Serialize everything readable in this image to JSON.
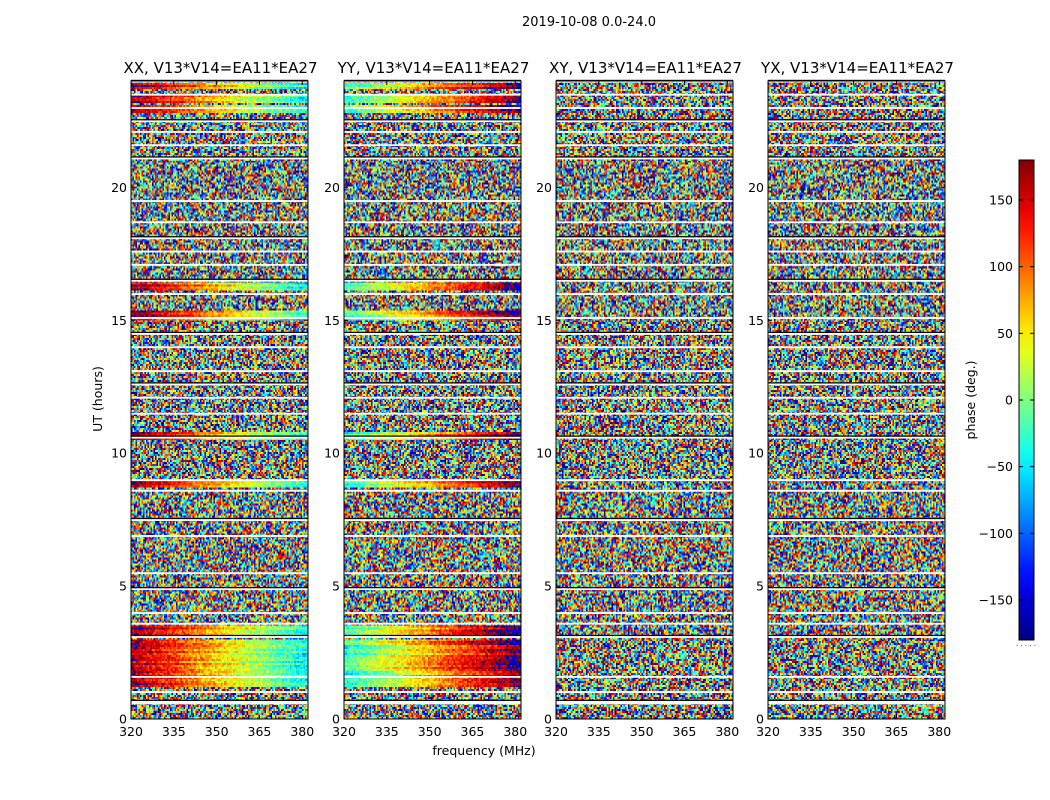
{
  "figure": {
    "title": "2019-10-08 0.0-24.0",
    "xlabel": "frequency (MHz)",
    "ylabel": "UT (hours)",
    "colorbar_label": "phase (deg.)",
    "colorbar_footer": "· · · · ·"
  },
  "chart_data": {
    "type": "heatmap",
    "title": "2019-10-08 0.0-24.0",
    "xlabel": "frequency (MHz)",
    "ylabel": "UT (hours)",
    "xlim": [
      320,
      382
    ],
    "ylim": [
      0,
      24
    ],
    "x_ticks": [
      320,
      335,
      350,
      365,
      380
    ],
    "y_ticks": [
      0,
      5,
      10,
      15,
      20
    ],
    "colorbar": {
      "label": "phase (deg.)",
      "range": [
        -180,
        180
      ],
      "ticks": [
        150,
        100,
        50,
        0,
        -50,
        -100,
        -150
      ],
      "tick_labels": [
        "150",
        "100",
        "50",
        "0",
        "−50",
        "−100",
        "−150"
      ],
      "colormap": "jet"
    },
    "panels": [
      {
        "name": "XX",
        "title": "XX, V13*V14=EA11*EA27"
      },
      {
        "name": "YY",
        "title": "YY, V13*V14=EA11*EA27"
      },
      {
        "name": "XY",
        "title": "XY, V13*V14=EA11*EA27"
      },
      {
        "name": "YX",
        "title": "YX, V13*V14=EA11*EA27"
      }
    ],
    "flagged_intervals_hours": [
      [
        0.55,
        0.68
      ],
      [
        0.98,
        1.05
      ],
      [
        1.55,
        1.62
      ],
      [
        3.05,
        3.12
      ],
      [
        3.55,
        3.62
      ],
      [
        3.95,
        4.02
      ],
      [
        4.85,
        4.92
      ],
      [
        5.45,
        5.52
      ],
      [
        6.85,
        6.92
      ],
      [
        7.45,
        7.52
      ],
      [
        8.55,
        8.62
      ],
      [
        8.95,
        9.02
      ],
      [
        10.55,
        10.62
      ],
      [
        11.45,
        11.52
      ],
      [
        12.05,
        12.12
      ],
      [
        12.55,
        12.62
      ],
      [
        13.05,
        13.12
      ],
      [
        13.95,
        14.02
      ],
      [
        14.45,
        14.52
      ],
      [
        15.05,
        15.12
      ],
      [
        15.95,
        16.02
      ],
      [
        16.45,
        16.52
      ],
      [
        17.05,
        17.12
      ],
      [
        17.55,
        17.62
      ],
      [
        18.05,
        18.12
      ],
      [
        18.65,
        18.72
      ],
      [
        19.45,
        19.52
      ],
      [
        21.05,
        21.12
      ],
      [
        21.55,
        21.62
      ],
      [
        22.05,
        22.12
      ],
      [
        22.45,
        22.52
      ],
      [
        22.95,
        23.02
      ],
      [
        23.45,
        23.52
      ],
      [
        23.95,
        24.0
      ]
    ],
    "coherent_bands_hours": [
      {
        "range": [
          1.2,
          3.0
        ],
        "panels": [
          "XX",
          "YY"
        ]
      },
      {
        "range": [
          3.1,
          3.5
        ],
        "panels": [
          "XX",
          "YY"
        ]
      },
      {
        "range": [
          8.7,
          9.0
        ],
        "panels": [
          "XX",
          "YY"
        ]
      },
      {
        "range": [
          10.5,
          10.8
        ],
        "panels": [
          "XX",
          "YY"
        ]
      },
      {
        "range": [
          15.0,
          15.35
        ],
        "panels": [
          "XX",
          "YY"
        ]
      },
      {
        "range": [
          16.1,
          16.4
        ],
        "panels": [
          "XX",
          "YY"
        ]
      },
      {
        "range": [
          22.8,
          23.1
        ],
        "panels": [
          "XX",
          "YY"
        ]
      },
      {
        "range": [
          23.2,
          23.5
        ],
        "panels": [
          "XX",
          "YY"
        ]
      },
      {
        "range": [
          23.7,
          23.95
        ],
        "panels": [
          "XX",
          "YY"
        ]
      }
    ]
  }
}
